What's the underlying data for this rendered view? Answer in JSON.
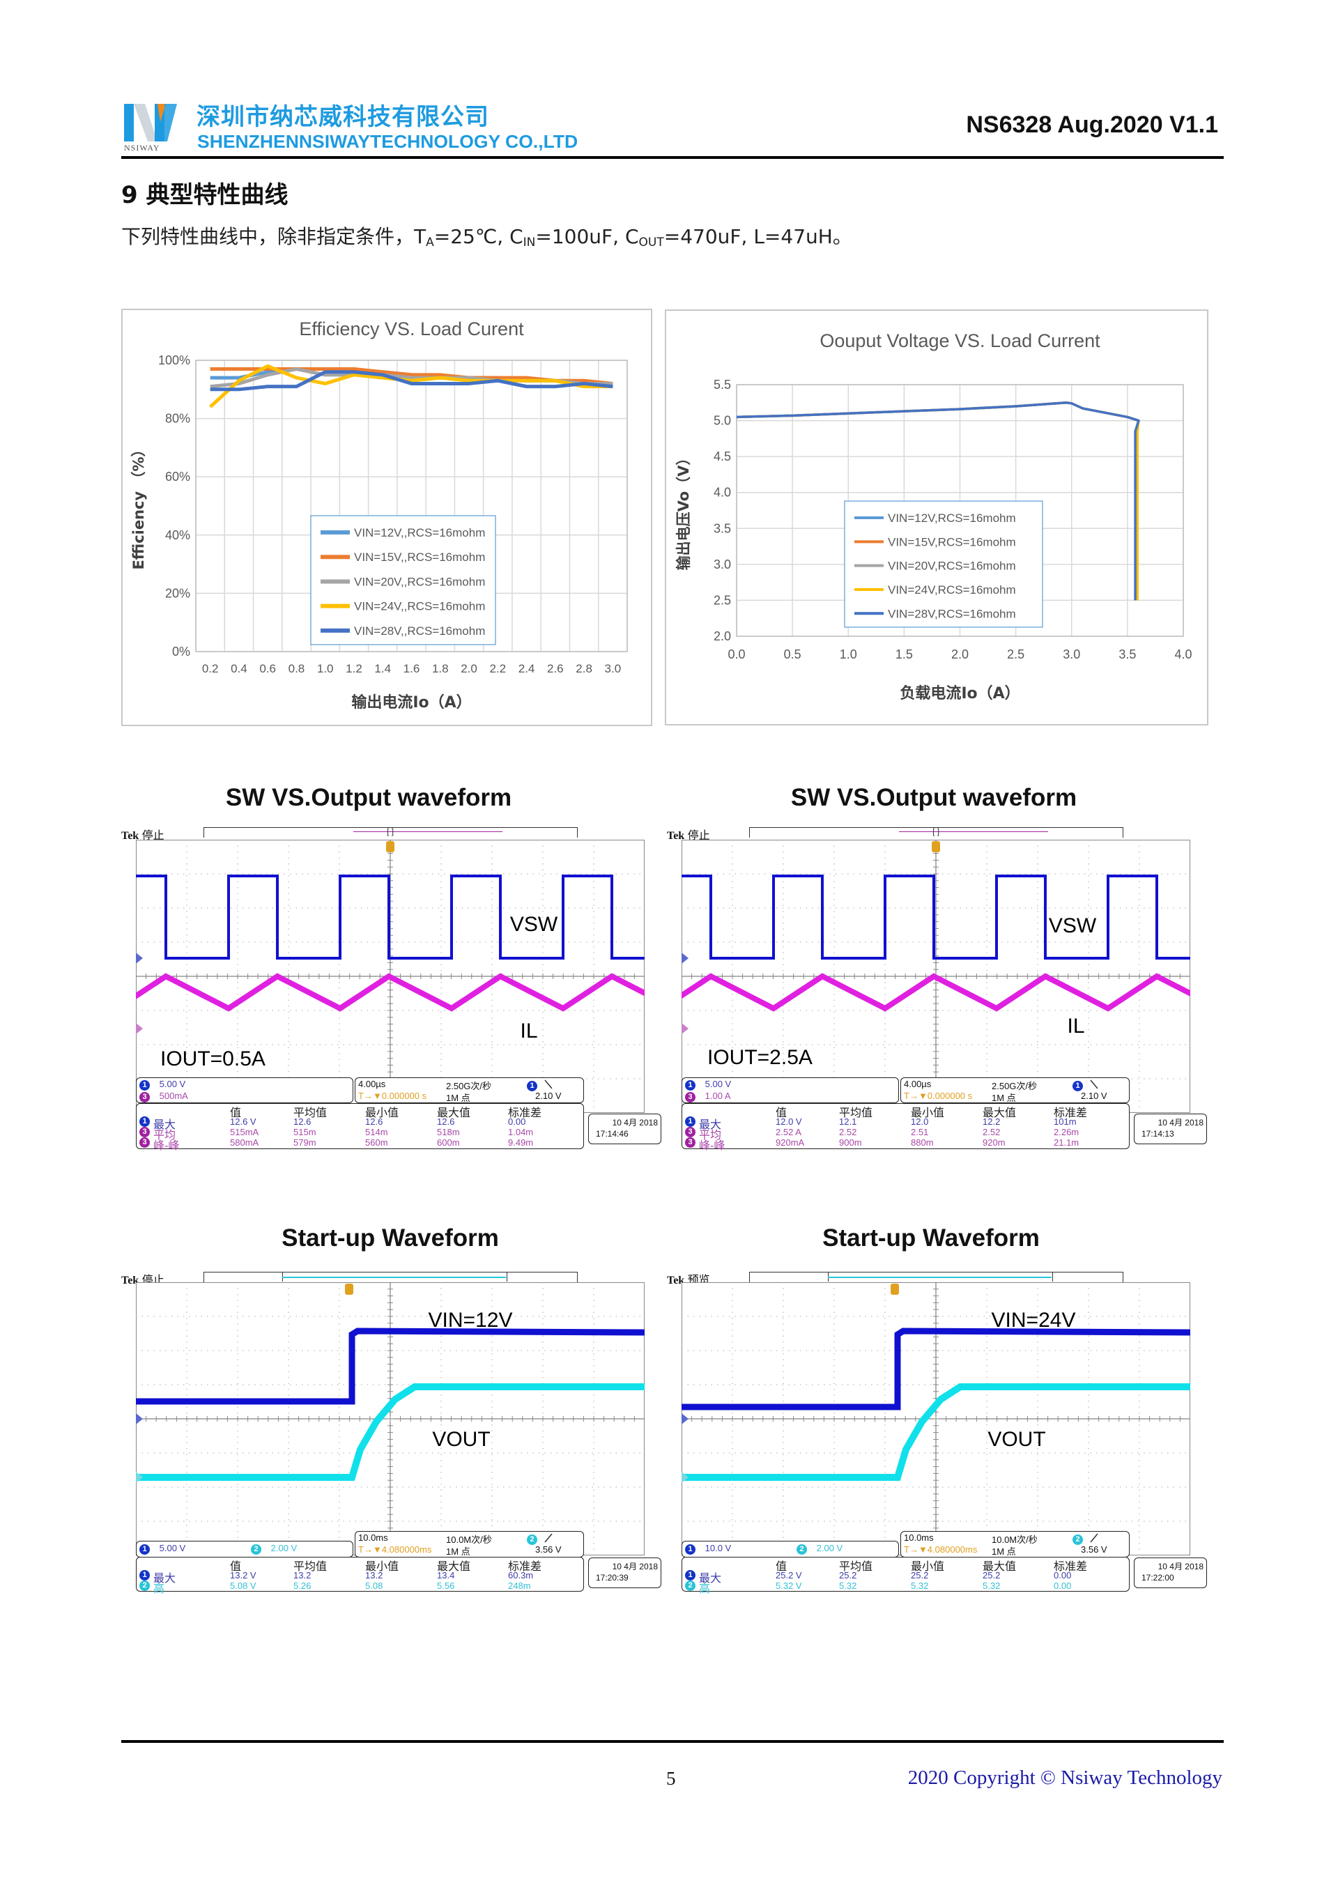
{
  "header": {
    "logo_text": "NSIWAY",
    "company_cn": "深圳市纳芯威科技有限公司",
    "company_en": "SHENZHENNSIWAYTECHNOLOGY CO.,LTD",
    "doc_id": "NS6328 Aug.2020 V1.1"
  },
  "section": {
    "title": "9  典型特性曲线",
    "conditions": {
      "prefix": "下列特性曲线中，除非指定条件，",
      "ta_main": "T",
      "ta_sub": "A",
      "ta_val": "=25℃, ",
      "cin_main": "C",
      "cin_sub": "IN",
      "cin_val": "=100uF, ",
      "cout_main": "C",
      "cout_sub": "OUT",
      "cout_val": "=470uF, ",
      "l_val": "L=47uH。"
    }
  },
  "chart_data": [
    {
      "type": "line",
      "title": "Efficiency VS. Load Curent",
      "xlabel": "输出电流Io（A）",
      "ylabel": "Efficiency （%）",
      "x_axis": "category",
      "categories": [
        "0.2",
        "0.4",
        "0.6",
        "0.8",
        "1.0",
        "1.2",
        "1.4",
        "1.6",
        "1.8",
        "2.0",
        "2.2",
        "2.4",
        "2.6",
        "2.8",
        "3.0"
      ],
      "ylim": [
        0,
        100
      ],
      "yticks": [
        "0%",
        "20%",
        "40%",
        "60%",
        "80%",
        "100%"
      ],
      "grid": true,
      "legend": "center-bottom",
      "series": [
        {
          "name": "VIN=12V,,RCS=16mohm",
          "color": "#5b9bd5",
          "values": [
            94,
            94,
            96,
            97,
            97,
            96,
            96,
            95,
            94,
            94,
            94,
            93,
            93,
            92,
            92
          ]
        },
        {
          "name": "VIN=15V,,RCS=16mohm",
          "color": "#ed7d31",
          "values": [
            97,
            97,
            97,
            97,
            97,
            97,
            96,
            95,
            95,
            94,
            94,
            94,
            93,
            93,
            92
          ]
        },
        {
          "name": "VIN=20V,,RCS=16mohm",
          "color": "#a5a5a5",
          "values": [
            91,
            92,
            95,
            97,
            95,
            95,
            95,
            94,
            94,
            94,
            93,
            93,
            93,
            92,
            92
          ]
        },
        {
          "name": "VIN=24V,,RCS=16mohm",
          "color": "#ffc000",
          "values": [
            84,
            93,
            98,
            94,
            92,
            95,
            94,
            93,
            94,
            93,
            93,
            93,
            93,
            91,
            91
          ]
        },
        {
          "name": "VIN=28V,,RCS=16mohm",
          "color": "#4472c4",
          "values": [
            90,
            90,
            91,
            91,
            96,
            96,
            95,
            92,
            92,
            92,
            93,
            91,
            91,
            92,
            91
          ]
        }
      ]
    },
    {
      "type": "line",
      "title": "Oouput Voltage VS. Load Current",
      "xlabel": "负载电流Io（A）",
      "ylabel": "输出电压Vo（V）",
      "x_axis": "numeric",
      "xlim": [
        0,
        4.0
      ],
      "ylim": [
        2.0,
        5.5
      ],
      "xticks": [
        "0.0",
        "0.5",
        "1.0",
        "1.5",
        "2.0",
        "2.5",
        "3.0",
        "3.5",
        "4.0"
      ],
      "yticks": [
        "2.0",
        "2.5",
        "3.0",
        "3.5",
        "4.0",
        "4.5",
        "5.0",
        "5.5"
      ],
      "grid": true,
      "legend": "center",
      "series": [
        {
          "name": "VIN=12V,RCS=16mohm",
          "color": "#5b9bd5",
          "x": [
            0,
            0.5,
            1.0,
            1.5,
            2.0,
            2.5,
            2.95,
            3.0,
            3.1,
            3.5,
            3.6,
            3.58,
            3.57
          ],
          "y": [
            5.05,
            5.07,
            5.1,
            5.13,
            5.16,
            5.2,
            5.25,
            5.24,
            5.17,
            5.05,
            5.0,
            4.85,
            2.5
          ]
        },
        {
          "name": "VIN=15V,RCS=16mohm",
          "color": "#ed7d31",
          "x": [
            0,
            0.5,
            1.0,
            1.5,
            2.0,
            2.5,
            2.95,
            3.0,
            3.1,
            3.5,
            3.6,
            3.58,
            3.58
          ],
          "y": [
            5.05,
            5.07,
            5.1,
            5.13,
            5.16,
            5.2,
            5.25,
            5.24,
            5.17,
            5.05,
            5.0,
            4.85,
            2.5
          ]
        },
        {
          "name": "VIN=20V,RCS=16mohm",
          "color": "#a5a5a5",
          "x": [
            0,
            0.5,
            1.0,
            1.5,
            2.0,
            2.5,
            2.95,
            3.0,
            3.1,
            3.5,
            3.6,
            3.58,
            3.58
          ],
          "y": [
            5.05,
            5.07,
            5.1,
            5.13,
            5.16,
            5.2,
            5.25,
            5.24,
            5.17,
            5.05,
            5.0,
            4.85,
            2.5
          ]
        },
        {
          "name": "VIN=24V,RCS=16mohm",
          "color": "#ffc000",
          "x": [
            0,
            0.5,
            1.0,
            1.5,
            2.0,
            2.5,
            2.95,
            3.0,
            3.1,
            3.5,
            3.6,
            3.59,
            3.59
          ],
          "y": [
            5.05,
            5.07,
            5.1,
            5.13,
            5.16,
            5.2,
            5.25,
            5.24,
            5.17,
            5.05,
            5.0,
            4.85,
            2.5
          ]
        },
        {
          "name": "VIN=28V,RCS=16mohm",
          "color": "#4472c4",
          "x": [
            0,
            0.5,
            1.0,
            1.5,
            2.0,
            2.5,
            2.95,
            3.0,
            3.1,
            3.5,
            3.6,
            3.57,
            3.57
          ],
          "y": [
            5.05,
            5.07,
            5.1,
            5.13,
            5.16,
            5.2,
            5.25,
            5.24,
            5.17,
            5.05,
            5.0,
            4.85,
            2.5
          ]
        }
      ]
    }
  ],
  "scopes": [
    {
      "title": "SW VS.Output waveform",
      "tek": "Tek",
      "status": "停止",
      "labels": [
        "VSW",
        "IL",
        "IOUT=0.5A"
      ],
      "channels": [
        {
          "ch": "1",
          "scale": "5.00 V"
        },
        {
          "ch": "3",
          "scale": "500mA"
        }
      ],
      "trigger": {
        "timebase": "4.00µs",
        "rate": "2.50G次/秒",
        "src": "1",
        "slope_icon": "falling-edge-icon",
        "pos": "T→▼0.000000 s",
        "points": "1M 点",
        "level": "2.10 V"
      },
      "table": {
        "headers": [
          "值",
          "平均值",
          "最小值",
          "最大值",
          "标准差"
        ],
        "rows": [
          {
            "ch": "1",
            "label": "最大",
            "values": [
              "12.6 V",
              "12.6",
              "12.6",
              "12.6",
              "0.00"
            ]
          },
          {
            "ch": "3",
            "label": "平均",
            "values": [
              "515mA",
              "515m",
              "514m",
              "518m",
              "1.04m"
            ]
          },
          {
            "ch": "3",
            "label": "峰-峰",
            "values": [
              "580mA",
              "579m",
              "560m",
              "600m",
              "9.49m"
            ]
          }
        ]
      },
      "date": "10 4月 2018",
      "time": "17:14:46"
    },
    {
      "title": "SW VS.Output waveform",
      "tek": "Tek",
      "status": "停止",
      "labels": [
        "VSW",
        "IL",
        "IOUT=2.5A"
      ],
      "channels": [
        {
          "ch": "1",
          "scale": "5.00 V"
        },
        {
          "ch": "3",
          "scale": "1.00 A"
        }
      ],
      "trigger": {
        "timebase": "4.00µs",
        "rate": "2.50G次/秒",
        "src": "1",
        "slope_icon": "falling-edge-icon",
        "pos": "T→▼0.000000 s",
        "points": "1M 点",
        "level": "2.10 V"
      },
      "table": {
        "headers": [
          "值",
          "平均值",
          "最小值",
          "最大值",
          "标准差"
        ],
        "rows": [
          {
            "ch": "1",
            "label": "最大",
            "values": [
              "12.0 V",
              "12.1",
              "12.0",
              "12.2",
              "101m"
            ]
          },
          {
            "ch": "3",
            "label": "平均",
            "values": [
              "2.52 A",
              "2.52",
              "2.51",
              "2.52",
              "2.26m"
            ]
          },
          {
            "ch": "3",
            "label": "峰-峰",
            "values": [
              "920mA",
              "900m",
              "880m",
              "920m",
              "21.1m"
            ]
          }
        ]
      },
      "date": "10 4月 2018",
      "time": "17:14:13"
    },
    {
      "title": "Start-up Waveform",
      "tek": "Tek",
      "status": "停止",
      "labels": [
        "VIN=12V",
        "VOUT"
      ],
      "channels": [
        {
          "ch": "1",
          "scale": "5.00 V"
        },
        {
          "ch": "2",
          "scale": "2.00 V"
        }
      ],
      "trigger": {
        "timebase": "10.0ms",
        "rate": "10.0M次/秒",
        "src": "2",
        "slope_icon": "rising-edge-icon",
        "pos": "T→▼4.080000ms",
        "points": "1M 点",
        "level": "3.56 V"
      },
      "table": {
        "headers": [
          "值",
          "平均值",
          "最小值",
          "最大值",
          "标准差"
        ],
        "rows": [
          {
            "ch": "1",
            "label": "最大",
            "values": [
              "13.2 V",
              "13.2",
              "13.2",
              "13.4",
              "60.3m"
            ]
          },
          {
            "ch": "2",
            "label": "高",
            "values": [
              "5.08 V",
              "5.26",
              "5.08",
              "5.56",
              "248m"
            ]
          }
        ]
      },
      "date": "10 4月 2018",
      "time": "17:20:39"
    },
    {
      "title": "Start-up Waveform",
      "tek": "Tek",
      "status": "预览",
      "labels": [
        "VIN=24V",
        "VOUT"
      ],
      "channels": [
        {
          "ch": "1",
          "scale": "10.0 V"
        },
        {
          "ch": "2",
          "scale": "2.00 V"
        }
      ],
      "trigger": {
        "timebase": "10.0ms",
        "rate": "10.0M次/秒",
        "src": "2",
        "slope_icon": "rising-edge-icon",
        "pos": "T→▼4.080000ms",
        "points": "1M 点",
        "level": "3.56 V"
      },
      "table": {
        "headers": [
          "值",
          "平均值",
          "最小值",
          "最大值",
          "标准差"
        ],
        "rows": [
          {
            "ch": "1",
            "label": "最大",
            "values": [
              "25.2 V",
              "25.2",
              "25.2",
              "25.2",
              "0.00"
            ]
          },
          {
            "ch": "2",
            "label": "高",
            "values": [
              "5.32 V",
              "5.32",
              "5.32",
              "5.32",
              "0.00"
            ]
          }
        ]
      },
      "date": "10 4月 2018",
      "time": "17:22:00"
    }
  ],
  "colors": {
    "brand": "#1e9be0",
    "ch1": "#1010d0",
    "ch2": "#10e0ea",
    "ch3": "#e020e0",
    "trigger": "#e0a020",
    "copyright": "#1a1aa8"
  },
  "footer": {
    "page": "5",
    "copyright": "2020 Copyright © Nsiway Technology"
  }
}
